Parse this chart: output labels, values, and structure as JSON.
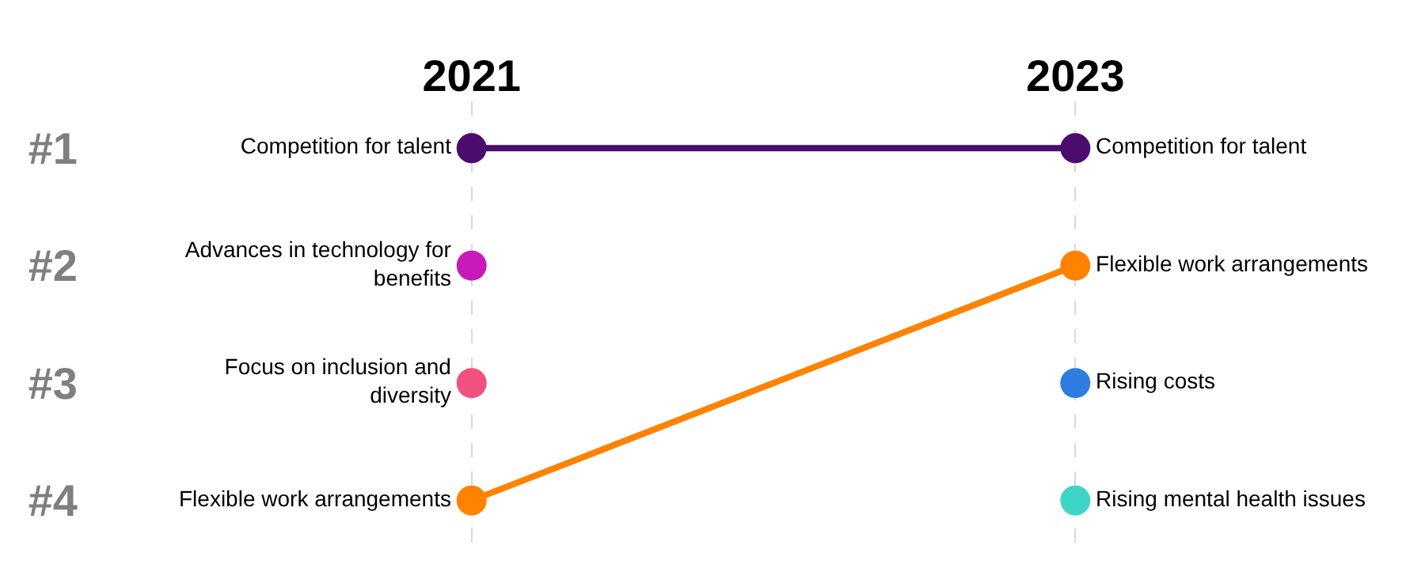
{
  "chart_data": {
    "type": "line",
    "categories": [
      "2021",
      "2023"
    ],
    "series": [
      {
        "name": "Competition for talent",
        "color": "#4b0c6e",
        "values": [
          1,
          1
        ]
      },
      {
        "name": "Flexible work arrangements",
        "color": "#ff8200",
        "values": [
          4,
          2
        ]
      },
      {
        "name": "Advances in technology for benefits",
        "color": "#c71ab8",
        "values": [
          2,
          null
        ]
      },
      {
        "name": "Focus on inclusion and diversity",
        "color": "#f0517e",
        "values": [
          3,
          null
        ]
      },
      {
        "name": "Rising costs",
        "color": "#2f7de1",
        "values": [
          null,
          3
        ]
      },
      {
        "name": "Rising mental health issues",
        "color": "#3dd6c6",
        "values": [
          null,
          4
        ]
      }
    ],
    "ylim": [
      4.4,
      0.6
    ],
    "yticks": [
      {
        "value": 1,
        "label": "#1"
      },
      {
        "value": 2,
        "label": "#2"
      },
      {
        "value": 3,
        "label": "#3"
      },
      {
        "value": 4,
        "label": "#4"
      }
    ],
    "grid": "x",
    "marker": "circle",
    "line_style": "solid"
  }
}
